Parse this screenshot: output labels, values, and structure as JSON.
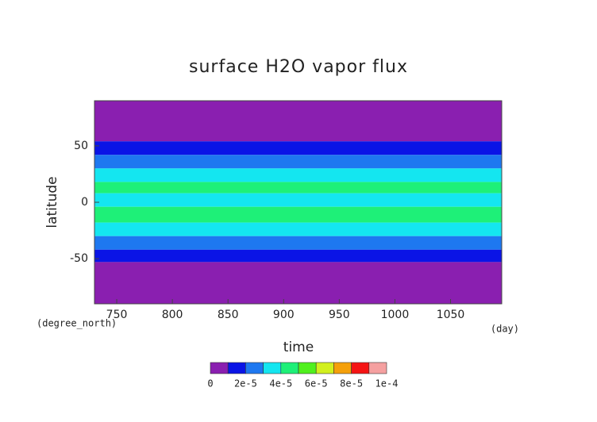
{
  "chart_data": {
    "type": "contour",
    "title": "surface H2O vapor flux",
    "x_label": "time",
    "y_label": "latitude",
    "x_unit": "(day)",
    "y_unit": "(degree_north)",
    "xlim": [
      730,
      1096
    ],
    "ylim": [
      -90,
      90
    ],
    "xticks": [
      750,
      800,
      850,
      900,
      950,
      1000,
      1050
    ],
    "yticks": [
      -50,
      0,
      50
    ],
    "bands": [
      {
        "from": 54,
        "to": 90,
        "value": 5e-06
      },
      {
        "from": 42,
        "to": 54,
        "value": 1.5e-05
      },
      {
        "from": 30,
        "to": 42,
        "value": 2.5e-05
      },
      {
        "from": 18,
        "to": 30,
        "value": 3.5e-05
      },
      {
        "from": 8,
        "to": 18,
        "value": 4.5e-05
      },
      {
        "from": -4,
        "to": 8,
        "value": 3.5e-05
      },
      {
        "from": -18,
        "to": -4,
        "value": 4.5e-05
      },
      {
        "from": -30,
        "to": -18,
        "value": 3.5e-05
      },
      {
        "from": -42,
        "to": -30,
        "value": 2.5e-05
      },
      {
        "from": -53,
        "to": -42,
        "value": 1.5e-05
      },
      {
        "from": -90,
        "to": -53,
        "value": 5e-06
      }
    ],
    "colorbar": {
      "levels": [
        0,
        1e-05,
        2e-05,
        3e-05,
        4e-05,
        5e-05,
        6e-05,
        7e-05,
        8e-05,
        9e-05,
        0.0001
      ],
      "colors": [
        "#8a1fb0",
        "#0a14e6",
        "#1e78f0",
        "#14e6f0",
        "#1ef078",
        "#50f01e",
        "#d2f01e",
        "#f5a00a",
        "#f51414",
        "#f5a0a0"
      ],
      "ticks": [
        0,
        {
          "value": 2e-05,
          "label": "2e-5"
        },
        {
          "value": 4e-05,
          "label": "4e-5"
        },
        {
          "value": 6e-05,
          "label": "6e-5"
        },
        {
          "value": 8e-05,
          "label": "8e-5"
        },
        {
          "value": 0.0001,
          "label": "1e-4"
        }
      ]
    }
  }
}
